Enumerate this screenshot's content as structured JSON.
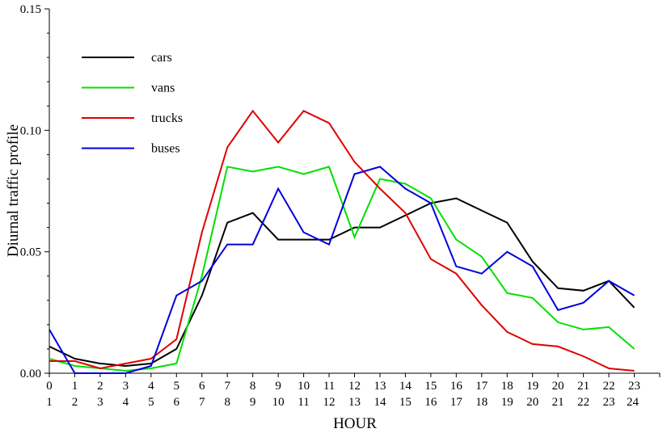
{
  "chart_data": {
    "type": "line",
    "title": "",
    "xlabel": "HOUR",
    "ylabel": "Diurnal traffic profile",
    "xlim": [
      0,
      24
    ],
    "ylim": [
      0,
      0.15
    ],
    "yticks": [
      "0.00",
      "0.05",
      "0.10",
      "0.15"
    ],
    "x_tick_labels_top": [
      "0",
      "1",
      "2",
      "3",
      "4",
      "5",
      "6",
      "7",
      "8",
      "9",
      "10",
      "11",
      "12",
      "13",
      "14",
      "15",
      "16",
      "17",
      "18",
      "19",
      "20",
      "21",
      "22",
      "23"
    ],
    "x_tick_labels_bottom": [
      "1",
      "2",
      "3",
      "4",
      "5",
      "6",
      "7",
      "8",
      "9",
      "10",
      "11",
      "12",
      "13",
      "14",
      "15",
      "16",
      "17",
      "18",
      "19",
      "20",
      "21",
      "22",
      "23",
      "24"
    ],
    "x": [
      0,
      1,
      2,
      3,
      4,
      5,
      6,
      7,
      8,
      9,
      10,
      11,
      12,
      13,
      14,
      15,
      16,
      17,
      18,
      19,
      20,
      21,
      22,
      23
    ],
    "grid": false,
    "legend_position": "top-left",
    "series": [
      {
        "name": "cars",
        "color": "#000000",
        "values": [
          0.011,
          0.006,
          0.004,
          0.003,
          0.004,
          0.01,
          0.032,
          0.062,
          0.066,
          0.055,
          0.055,
          0.055,
          0.06,
          0.06,
          0.065,
          0.07,
          0.072,
          0.067,
          0.062,
          0.046,
          0.035,
          0.034,
          0.038,
          0.027
        ]
      },
      {
        "name": "vans",
        "color": "#00e000",
        "values": [
          0.006,
          0.003,
          0.002,
          0.001,
          0.002,
          0.004,
          0.04,
          0.085,
          0.083,
          0.085,
          0.082,
          0.085,
          0.056,
          0.08,
          0.078,
          0.072,
          0.055,
          0.048,
          0.033,
          0.031,
          0.021,
          0.018,
          0.019,
          0.01
        ]
      },
      {
        "name": "trucks",
        "color": "#e00000",
        "values": [
          0.005,
          0.005,
          0.002,
          0.004,
          0.006,
          0.014,
          0.058,
          0.093,
          0.108,
          0.095,
          0.108,
          0.103,
          0.087,
          0.076,
          0.066,
          0.047,
          0.041,
          0.028,
          0.017,
          0.012,
          0.011,
          0.007,
          0.002,
          0.001
        ]
      },
      {
        "name": "buses",
        "color": "#0000e0",
        "values": [
          0.018,
          0.0,
          0.0,
          0.0,
          0.003,
          0.032,
          0.038,
          0.053,
          0.053,
          0.076,
          0.058,
          0.053,
          0.082,
          0.085,
          0.076,
          0.07,
          0.044,
          0.041,
          0.05,
          0.044,
          0.026,
          0.029,
          0.038,
          0.032
        ]
      }
    ]
  }
}
